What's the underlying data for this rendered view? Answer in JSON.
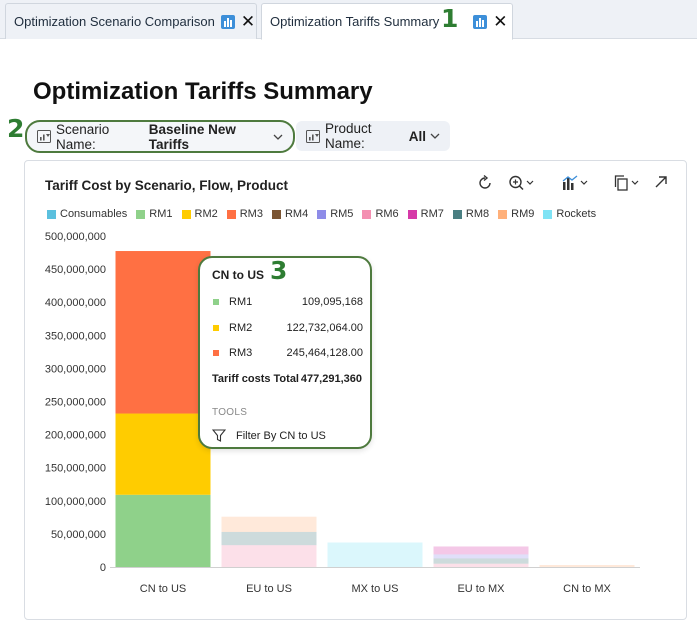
{
  "tabs": [
    {
      "label": "Optimization Scenario Comparison"
    },
    {
      "label": "Optimization Tariffs Summary"
    }
  ],
  "annotations": {
    "a1": "1",
    "a2": "2",
    "a3": "3"
  },
  "page": {
    "title": "Optimization Tariffs Summary"
  },
  "filters": {
    "scenario": {
      "label": "Scenario Name:",
      "value": "Baseline New Tariffs"
    },
    "product": {
      "label": "Product Name:",
      "value": "All"
    }
  },
  "card": {
    "title": "Tariff Cost by Scenario, Flow, Product"
  },
  "legend": [
    {
      "name": "Consumables",
      "color": "#5bc0de"
    },
    {
      "name": "RM1",
      "color": "#8fd18a"
    },
    {
      "name": "RM2",
      "color": "#ffcc00"
    },
    {
      "name": "RM3",
      "color": "#ff7043"
    },
    {
      "name": "RM4",
      "color": "#7b5533"
    },
    {
      "name": "RM5",
      "color": "#8e8ce8"
    },
    {
      "name": "RM6",
      "color": "#f48fb1"
    },
    {
      "name": "RM7",
      "color": "#d63aa8"
    },
    {
      "name": "RM8",
      "color": "#4a7f82"
    },
    {
      "name": "RM9",
      "color": "#ffb07a"
    },
    {
      "name": "Rockets",
      "color": "#7fe3f5"
    }
  ],
  "chart_data": {
    "type": "bar",
    "stacked": true,
    "title": "Tariff Cost by Scenario, Flow, Product",
    "categories": [
      "CN to US",
      "EU to US",
      "MX to US",
      "EU to MX",
      "CN to MX"
    ],
    "ylim": [
      0,
      500000000
    ],
    "yticks": [
      0,
      50000000,
      100000000,
      150000000,
      200000000,
      250000000,
      300000000,
      350000000,
      400000000,
      450000000,
      500000000
    ],
    "ytick_labels": [
      "0",
      "50,000,000",
      "100,000,000",
      "150,000,000",
      "200,000,000",
      "250,000,000",
      "300,000,000",
      "350,000,000",
      "400,000,000",
      "450,000,000",
      "500,000,000"
    ],
    "series": [
      {
        "name": "RM1",
        "color": "#8fd18a",
        "values": [
          109095168,
          0,
          0,
          0,
          0
        ]
      },
      {
        "name": "RM2",
        "color": "#ffcc00",
        "values": [
          122732064,
          0,
          0,
          0,
          0
        ]
      },
      {
        "name": "RM3",
        "color": "#ff7043",
        "values": [
          245464128,
          0,
          0,
          0,
          0
        ]
      },
      {
        "name": "RM6",
        "color": "#f48fb1",
        "values": [
          0,
          33000000,
          0,
          5000000,
          0
        ]
      },
      {
        "name": "RM8",
        "color": "#4a7f82",
        "values": [
          0,
          20000000,
          0,
          8000000,
          0
        ]
      },
      {
        "name": "RM5",
        "color": "#8e8ce8",
        "values": [
          0,
          0,
          0,
          6000000,
          0
        ]
      },
      {
        "name": "RM9",
        "color": "#ffb07a",
        "values": [
          0,
          23000000,
          0,
          0,
          3000000
        ]
      },
      {
        "name": "Rockets",
        "color": "#7fe3f5",
        "values": [
          0,
          0,
          37000000,
          0,
          0
        ]
      },
      {
        "name": "RM7",
        "color": "#d63aa8",
        "values": [
          0,
          0,
          0,
          12000000,
          0
        ]
      }
    ]
  },
  "tooltip": {
    "title": "CN to US",
    "rows": [
      {
        "name": "RM1",
        "value": "109,095,168",
        "color": "#8fd18a"
      },
      {
        "name": "RM2",
        "value": "122,732,064.00",
        "color": "#ffcc00"
      },
      {
        "name": "RM3",
        "value": "245,464,128.00",
        "color": "#ff7043"
      }
    ],
    "total_label": "Tariff costs Total",
    "total_value": "477,291,360",
    "tools_label": "TOOLS",
    "filter_label": "Filter By CN to US"
  }
}
